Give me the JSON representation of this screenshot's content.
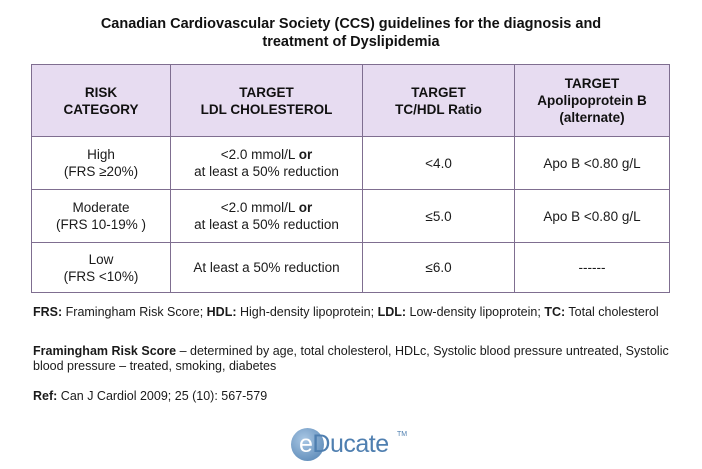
{
  "title_line1": "Canadian Cardiovascular Society (CCS) guidelines for the diagnosis and",
  "title_line2": "treatment of Dyslipidemia",
  "table": {
    "headers": [
      [
        "RISK",
        "CATEGORY"
      ],
      [
        "TARGET",
        "LDL CHOLESTEROL"
      ],
      [
        "TARGET",
        "TC/HDL Ratio"
      ],
      [
        "TARGET",
        "Apolipoprotein B",
        "(alternate)"
      ]
    ],
    "rows": [
      {
        "risk": [
          "High",
          "(FRS ≥20%)"
        ],
        "ldl_a": "<2.0 mmol/L ",
        "ldl_or": "or",
        "ldl_b": "at least a 50% reduction",
        "ratio": "<4.0",
        "apob": "Apo B <0.80 g/L"
      },
      {
        "risk": [
          "Moderate",
          "(FRS 10-19% )"
        ],
        "ldl_a": "<2.0 mmol/L ",
        "ldl_or": "or",
        "ldl_b": "at least a 50% reduction",
        "ratio": "≤5.0",
        "apob": "Apo B <0.80 g/L"
      },
      {
        "risk": [
          "Low",
          "(FRS <10%)"
        ],
        "ldl": "At least a 50% reduction",
        "ratio": "≤6.0",
        "apob": "------"
      }
    ]
  },
  "abbreviations": {
    "frs_label": "FRS:",
    "frs_text": " Framingham Risk Score; ",
    "hdl_label": "HDL:",
    "hdl_text": " High-density lipoprotein; ",
    "ldl_label": "LDL:",
    "ldl_text": " Low-density lipoprotein; ",
    "tc_label": "TC:",
    "tc_text": " Total cholesterol"
  },
  "frs_note": {
    "label": "Framingham Risk Score",
    "text": " – determined by age, total cholesterol, HDLc, Systolic blood pressure untreated, Systolic blood pressure – treated, smoking, diabetes"
  },
  "reference": {
    "label": "Ref:",
    "text": " Can J Cardiol 2009; 25 (10): 567-579"
  },
  "logo": {
    "letter_e": "e",
    "rest": "Ducate",
    "tm": "TM"
  }
}
